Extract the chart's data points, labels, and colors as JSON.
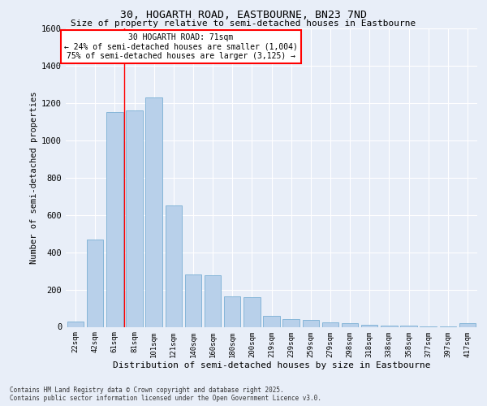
{
  "title1": "30, HOGARTH ROAD, EASTBOURNE, BN23 7ND",
  "title2": "Size of property relative to semi-detached houses in Eastbourne",
  "xlabel": "Distribution of semi-detached houses by size in Eastbourne",
  "ylabel": "Number of semi-detached properties",
  "categories": [
    "22sqm",
    "42sqm",
    "61sqm",
    "81sqm",
    "101sqm",
    "121sqm",
    "140sqm",
    "160sqm",
    "180sqm",
    "200sqm",
    "219sqm",
    "239sqm",
    "259sqm",
    "279sqm",
    "298sqm",
    "318sqm",
    "338sqm",
    "358sqm",
    "377sqm",
    "397sqm",
    "417sqm"
  ],
  "values": [
    30,
    470,
    1150,
    1160,
    1230,
    650,
    280,
    275,
    165,
    160,
    60,
    40,
    35,
    25,
    18,
    12,
    8,
    6,
    4,
    4,
    18
  ],
  "bar_color": "#b8d0ea",
  "bar_edge_color": "#7aafd4",
  "annotation_title": "30 HOGARTH ROAD: 71sqm",
  "annotation_line1": "← 24% of semi-detached houses are smaller (1,004)",
  "annotation_line2": "75% of semi-detached houses are larger (3,125) →",
  "footer1": "Contains HM Land Registry data © Crown copyright and database right 2025.",
  "footer2": "Contains public sector information licensed under the Open Government Licence v3.0.",
  "ylim": [
    0,
    1600
  ],
  "yticks": [
    0,
    200,
    400,
    600,
    800,
    1000,
    1200,
    1400,
    1600
  ],
  "bg_color": "#e8eef8",
  "plot_bg_color": "#e8eef8"
}
